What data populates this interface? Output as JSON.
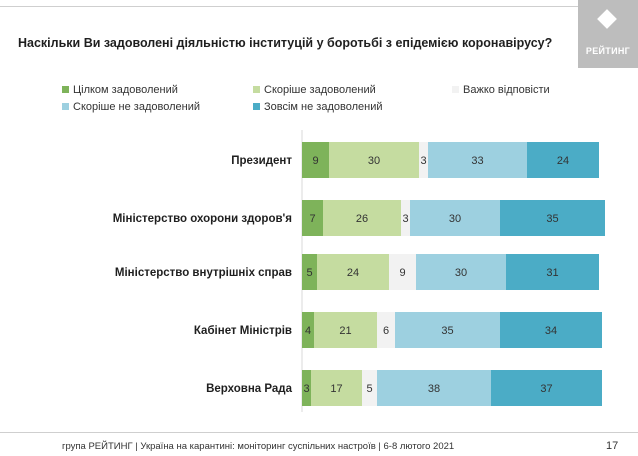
{
  "title": "Наскільки Ви задоволені діяльністю інституцій у боротьбі з епідемією коронавірусу?",
  "logo_text": "РЕЙТИНГ",
  "footer": "група РЕЙТИНГ | Україна на карантині: моніторинг суспільних настроїв | 6-8 лютого 2021",
  "page_number": "17",
  "colors": {
    "fully_satisfied": "#7eb35a",
    "rather_satisfied": "#c5dca0",
    "hard_to_say": "#f2f2f2",
    "rather_dissatisfied": "#9dd0e0",
    "totally_dissatisfied": "#4bacc6"
  },
  "legend": [
    {
      "label": "Цілком задоволений",
      "color": "#7eb35a"
    },
    {
      "label": "Скоріше задоволений",
      "color": "#c5dca0"
    },
    {
      "label": "Важко відповісти",
      "color": "#f2f2f2"
    },
    {
      "label": "Скоріше не задоволений",
      "color": "#9dd0e0"
    },
    {
      "label": "Зовсім не задоволений",
      "color": "#4bacc6"
    }
  ],
  "chart_data": {
    "type": "bar",
    "orientation": "horizontal",
    "stacked": true,
    "categories": [
      "Президент",
      "Міністерство охорони здоров'я",
      "Міністерство внутрішніх справ",
      "Кабінет Міністрів",
      "Верховна Рада"
    ],
    "series": [
      {
        "name": "Цілком задоволений",
        "values": [
          9,
          7,
          5,
          4,
          3
        ]
      },
      {
        "name": "Скоріше задоволений",
        "values": [
          30,
          26,
          24,
          21,
          17
        ]
      },
      {
        "name": "Важко відповісти",
        "values": [
          3,
          3,
          9,
          6,
          5
        ]
      },
      {
        "name": "Скоріше не задоволений",
        "values": [
          33,
          30,
          30,
          35,
          38
        ]
      },
      {
        "name": "Зовсім не задоволений",
        "values": [
          24,
          35,
          31,
          34,
          37
        ]
      }
    ],
    "xlim": [
      0,
      100
    ]
  }
}
